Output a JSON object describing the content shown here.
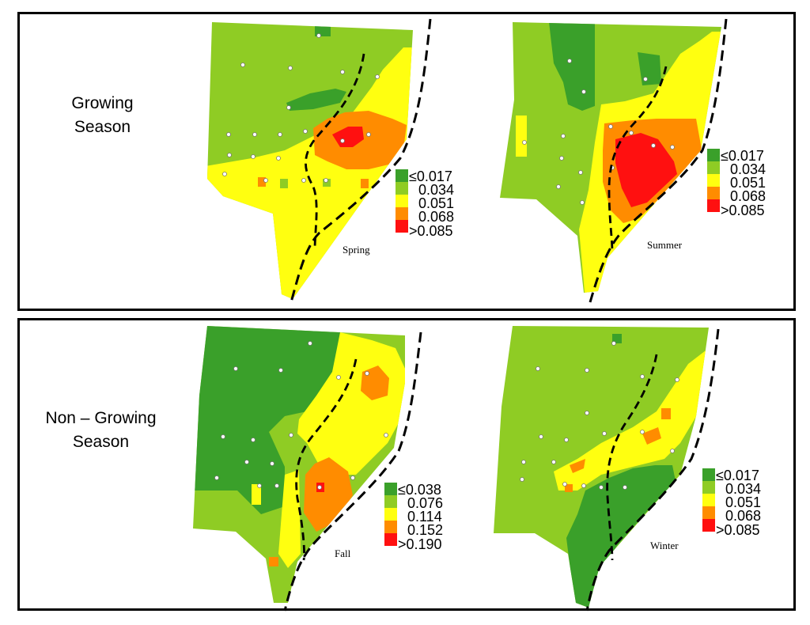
{
  "rows": [
    {
      "label_line1": "Growing",
      "label_line2": "Season"
    },
    {
      "label_line1": "Non – Growing",
      "label_line2": "Season"
    }
  ],
  "maps": [
    {
      "season": "Spring",
      "legend": [
        "≤0.017",
        "0.034",
        "0.051",
        "0.068",
        ">0.085"
      ]
    },
    {
      "season": "Summer",
      "legend": [
        "≤0.017",
        "0.034",
        "0.051",
        "0.068",
        ">0.085"
      ]
    },
    {
      "season": "Fall",
      "legend": [
        "≤0.038",
        "0.076",
        "0.114",
        "0.152",
        ">0.190"
      ]
    },
    {
      "season": "Winter",
      "legend": [
        "≤0.017",
        "0.034",
        "0.051",
        "0.068",
        ">0.085"
      ]
    }
  ],
  "colors": {
    "class1": "#3aa02a",
    "class2": "#8fcc24",
    "class3": "#ffff10",
    "class4": "#ff8c00",
    "class5": "#ff1010",
    "border": "#000000"
  }
}
